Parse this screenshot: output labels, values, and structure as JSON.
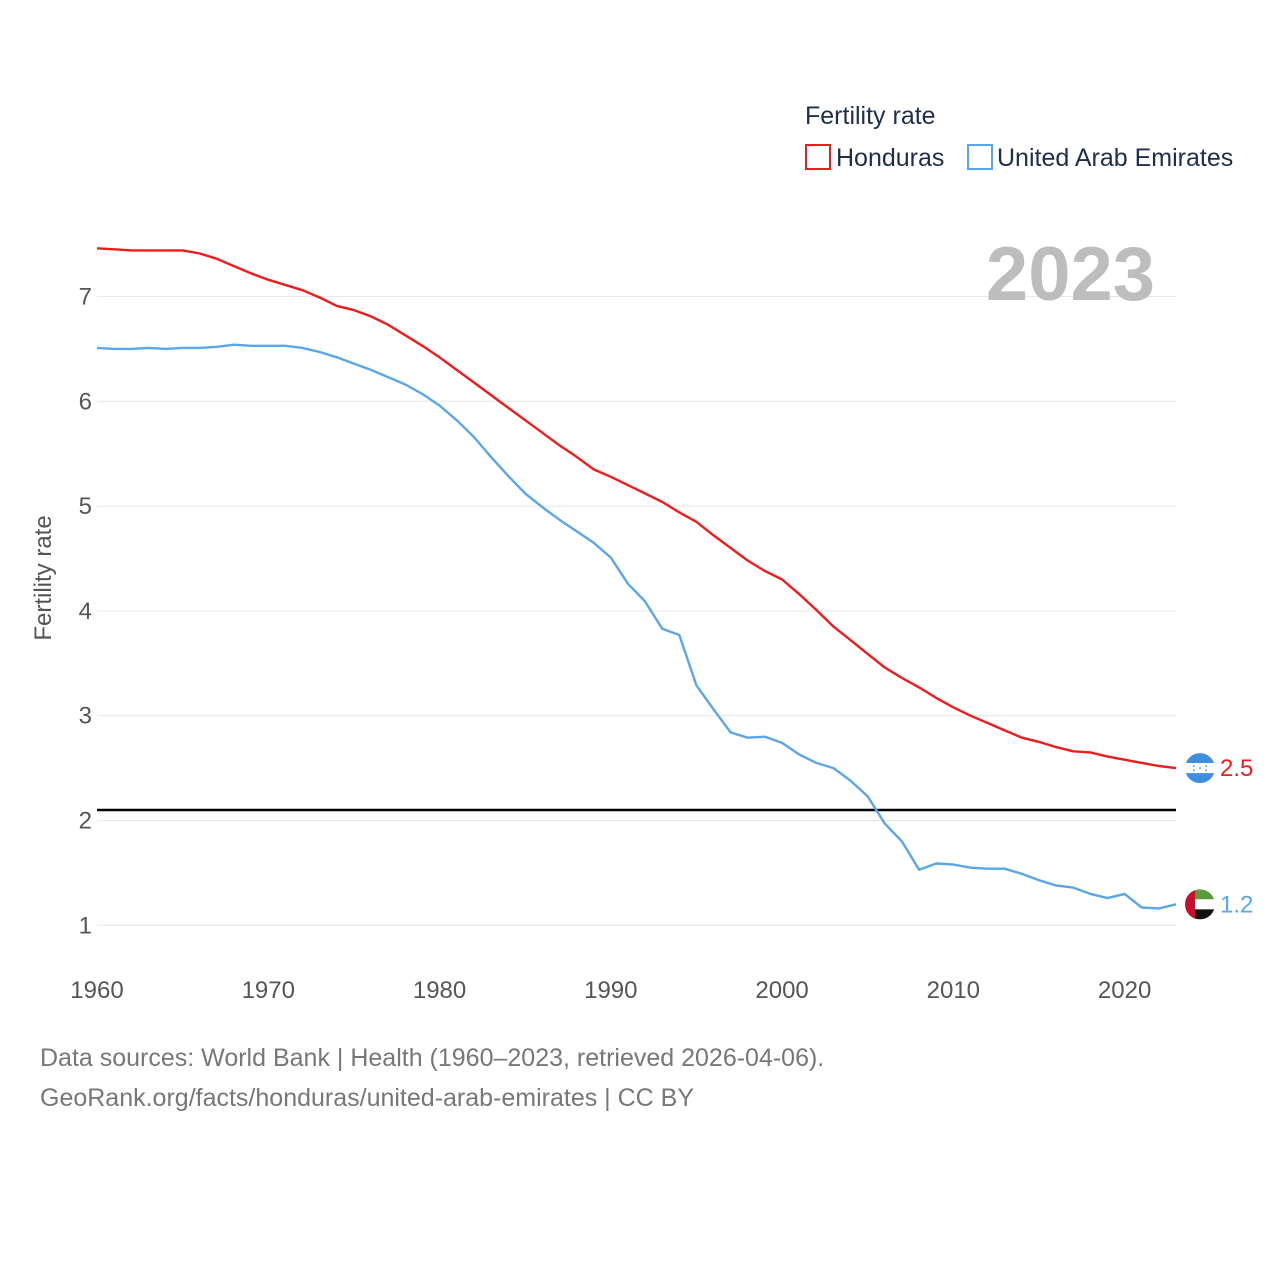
{
  "chart_data": {
    "type": "line",
    "title": "Fertility rate",
    "ylabel": "Fertility rate",
    "xlabel": "",
    "year_display": "2023",
    "xlim": [
      1960,
      2023
    ],
    "ylim": [
      0.65,
      7.5
    ],
    "x_ticks": [
      1960,
      1970,
      1980,
      1990,
      2000,
      2010,
      2020
    ],
    "y_ticks": [
      1,
      2,
      3,
      4,
      5,
      6,
      7
    ],
    "grid": true,
    "legend_position": "top-right",
    "reference_line": {
      "y": 2.1,
      "color": "#000000"
    },
    "x": [
      1960,
      1961,
      1962,
      1963,
      1964,
      1965,
      1966,
      1967,
      1968,
      1969,
      1970,
      1971,
      1972,
      1973,
      1974,
      1975,
      1976,
      1977,
      1978,
      1979,
      1980,
      1981,
      1982,
      1983,
      1984,
      1985,
      1986,
      1987,
      1988,
      1989,
      1990,
      1991,
      1992,
      1993,
      1994,
      1995,
      1996,
      1997,
      1998,
      1999,
      2000,
      2001,
      2002,
      2003,
      2004,
      2005,
      2006,
      2007,
      2008,
      2009,
      2010,
      2011,
      2012,
      2013,
      2014,
      2015,
      2016,
      2017,
      2018,
      2019,
      2020,
      2021,
      2022,
      2023
    ],
    "series": [
      {
        "name": "Honduras",
        "color": "#ee1c1c",
        "end_label": "2.5",
        "flag": "honduras-flag",
        "values": [
          7.46,
          7.45,
          7.44,
          7.44,
          7.44,
          7.44,
          7.41,
          7.36,
          7.29,
          7.22,
          7.16,
          7.11,
          7.06,
          6.99,
          6.91,
          6.87,
          6.81,
          6.73,
          6.63,
          6.53,
          6.42,
          6.3,
          6.18,
          6.06,
          5.94,
          5.82,
          5.7,
          5.58,
          5.47,
          5.35,
          5.28,
          5.2,
          5.12,
          5.04,
          4.94,
          4.85,
          4.72,
          4.6,
          4.48,
          4.38,
          4.3,
          4.16,
          4.01,
          3.85,
          3.72,
          3.59,
          3.46,
          3.36,
          3.27,
          3.17,
          3.08,
          3.0,
          2.93,
          2.86,
          2.79,
          2.75,
          2.7,
          2.66,
          2.65,
          2.61,
          2.58,
          2.55,
          2.52,
          2.5
        ]
      },
      {
        "name": "United Arab Emirates",
        "color": "#5aa6e8",
        "end_label": "1.2",
        "flag": "uae-flag",
        "values": [
          6.51,
          6.5,
          6.5,
          6.51,
          6.5,
          6.51,
          6.51,
          6.52,
          6.54,
          6.53,
          6.53,
          6.53,
          6.51,
          6.47,
          6.42,
          6.36,
          6.3,
          6.23,
          6.16,
          6.07,
          5.96,
          5.82,
          5.66,
          5.47,
          5.29,
          5.12,
          4.99,
          4.87,
          4.76,
          4.65,
          4.51,
          4.26,
          4.09,
          3.83,
          3.77,
          3.29,
          3.06,
          2.84,
          2.79,
          2.8,
          2.74,
          2.63,
          2.55,
          2.5,
          2.38,
          2.23,
          1.97,
          1.8,
          1.53,
          1.59,
          1.58,
          1.55,
          1.54,
          1.54,
          1.49,
          1.43,
          1.38,
          1.36,
          1.3,
          1.26,
          1.3,
          1.17,
          1.16,
          1.2
        ]
      }
    ]
  },
  "footer": {
    "line1": "Data sources: World Bank | Health (1960–2023, retrieved 2026-04-06).",
    "line2": "GeoRank.org/facts/honduras/united-arab-emirates | CC BY"
  }
}
